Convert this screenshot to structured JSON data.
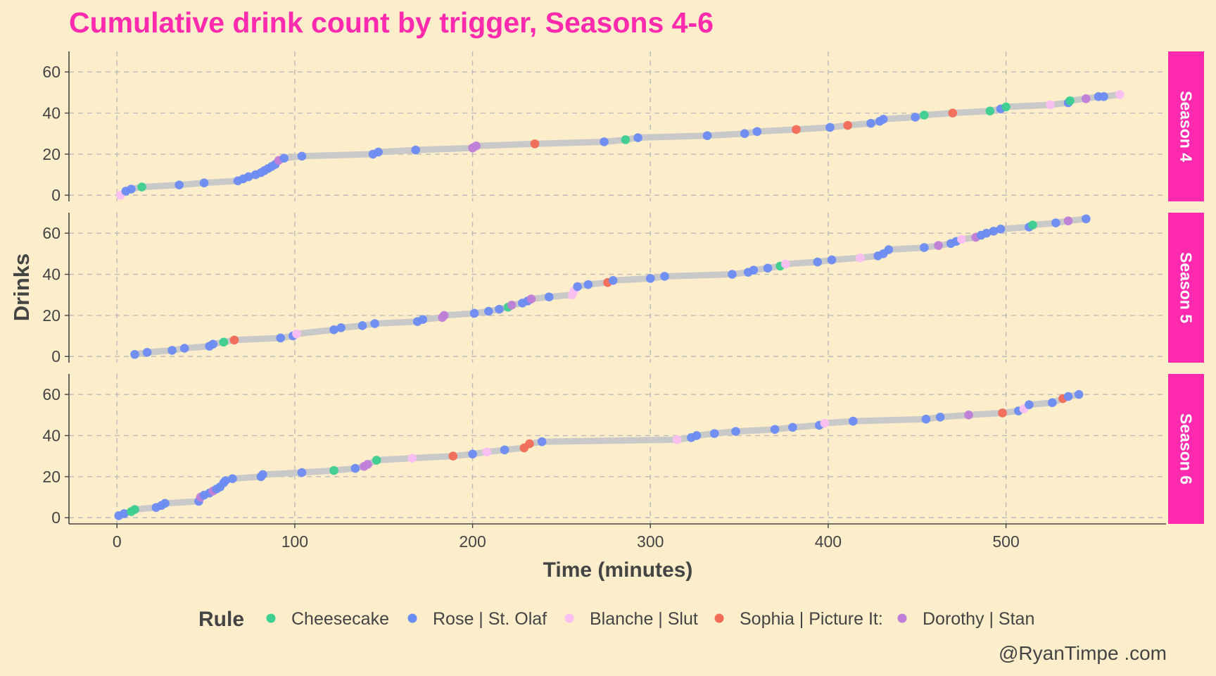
{
  "caption": "@RyanTimpe .com",
  "chart_data": {
    "type": "scatter",
    "title": "Cumulative drink count by trigger, Seasons 4-6",
    "xlabel": "Time (minutes)",
    "ylabel": "Drinks",
    "xlim": [
      -27,
      590
    ],
    "ylim": [
      -3,
      70
    ],
    "x_ticks": [
      0,
      100,
      200,
      300,
      400,
      500
    ],
    "y_ticks": [
      0,
      20,
      40,
      60
    ],
    "grid": true,
    "legend_title": "Rule",
    "legend_position": "bottom",
    "colors": {
      "background": "#FCEDCB",
      "title": "#FF2AAD",
      "strip": "#FF2AAD",
      "line": "#C9C9C9",
      "grid": "#BBBBBB",
      "axis": "#444444"
    },
    "rules": [
      {
        "name": "Cheesecake",
        "color": "#3CCF8F"
      },
      {
        "name": "Rose | St. Olaf",
        "color": "#6B8CF2"
      },
      {
        "name": "Blanche | Slut",
        "color": "#FBC0F2"
      },
      {
        "name": "Sophia | Picture It:",
        "color": "#F26B57"
      },
      {
        "name": "Dorothy | Stan",
        "color": "#C07ED8"
      }
    ],
    "panels": [
      {
        "label": "Season 4",
        "points": [
          [
            2,
            0,
            2
          ],
          [
            5,
            2,
            1
          ],
          [
            8,
            3,
            1
          ],
          [
            14,
            4,
            0
          ],
          [
            35,
            5,
            1
          ],
          [
            49,
            6,
            1
          ],
          [
            68,
            7,
            1
          ],
          [
            71,
            8,
            1
          ],
          [
            74,
            9,
            1
          ],
          [
            78,
            10,
            1
          ],
          [
            81,
            11,
            1
          ],
          [
            83,
            12,
            1
          ],
          [
            85,
            13,
            1
          ],
          [
            87,
            14,
            1
          ],
          [
            89,
            15,
            1
          ],
          [
            91,
            17,
            4
          ],
          [
            94,
            18,
            1
          ],
          [
            104,
            19,
            1
          ],
          [
            144,
            20,
            1
          ],
          [
            147,
            21,
            1
          ],
          [
            168,
            22,
            1
          ],
          [
            200,
            23,
            4
          ],
          [
            202,
            24,
            4
          ],
          [
            235,
            25,
            3
          ],
          [
            274,
            26,
            1
          ],
          [
            286,
            27,
            0
          ],
          [
            293,
            28,
            1
          ],
          [
            332,
            29,
            1
          ],
          [
            353,
            30,
            1
          ],
          [
            360,
            31,
            1
          ],
          [
            382,
            32,
            3
          ],
          [
            401,
            33,
            1
          ],
          [
            411,
            34,
            3
          ],
          [
            424,
            35,
            1
          ],
          [
            429,
            36,
            1
          ],
          [
            431,
            37,
            1
          ],
          [
            449,
            38,
            1
          ],
          [
            454,
            39,
            0
          ],
          [
            470,
            40,
            3
          ],
          [
            491,
            41,
            0
          ],
          [
            497,
            42,
            1
          ],
          [
            500,
            43,
            0
          ],
          [
            525,
            44,
            2
          ],
          [
            535,
            45,
            1
          ],
          [
            536,
            46,
            0
          ],
          [
            545,
            47,
            4
          ],
          [
            552,
            48,
            1
          ],
          [
            555,
            48,
            1
          ],
          [
            564,
            49,
            2
          ]
        ]
      },
      {
        "label": "Season 5",
        "points": [
          [
            10,
            1,
            1
          ],
          [
            17,
            2,
            1
          ],
          [
            31,
            3,
            1
          ],
          [
            38,
            4,
            1
          ],
          [
            52,
            5,
            1
          ],
          [
            54,
            6,
            1
          ],
          [
            60,
            7,
            0
          ],
          [
            66,
            8,
            3
          ],
          [
            92,
            9,
            1
          ],
          [
            99,
            10,
            1
          ],
          [
            101,
            11,
            2
          ],
          [
            122,
            13,
            1
          ],
          [
            126,
            14,
            1
          ],
          [
            138,
            15,
            1
          ],
          [
            145,
            16,
            1
          ],
          [
            169,
            17,
            1
          ],
          [
            172,
            18,
            1
          ],
          [
            183,
            19,
            4
          ],
          [
            184,
            20,
            4
          ],
          [
            201,
            21,
            1
          ],
          [
            209,
            22,
            1
          ],
          [
            215,
            23,
            1
          ],
          [
            220,
            24,
            0
          ],
          [
            222,
            25,
            4
          ],
          [
            228,
            26,
            1
          ],
          [
            231,
            27,
            1
          ],
          [
            233,
            28,
            4
          ],
          [
            243,
            29,
            1
          ],
          [
            256,
            30,
            2
          ],
          [
            257,
            32,
            2
          ],
          [
            259,
            34,
            1
          ],
          [
            265,
            35,
            1
          ],
          [
            276,
            36,
            3
          ],
          [
            279,
            37,
            1
          ],
          [
            300,
            38,
            1
          ],
          [
            308,
            39,
            1
          ],
          [
            346,
            40,
            1
          ],
          [
            355,
            41,
            1
          ],
          [
            358,
            42,
            1
          ],
          [
            366,
            43,
            1
          ],
          [
            373,
            44,
            0
          ],
          [
            376,
            45,
            2
          ],
          [
            394,
            46,
            1
          ],
          [
            402,
            47,
            1
          ],
          [
            418,
            48,
            2
          ],
          [
            428,
            49,
            1
          ],
          [
            431,
            50,
            1
          ],
          [
            434,
            52,
            1
          ],
          [
            454,
            53,
            1
          ],
          [
            462,
            54,
            4
          ],
          [
            469,
            55,
            1
          ],
          [
            472,
            56,
            1
          ],
          [
            475,
            57,
            2
          ],
          [
            483,
            58,
            4
          ],
          [
            486,
            59,
            1
          ],
          [
            489,
            60,
            1
          ],
          [
            493,
            61,
            1
          ],
          [
            497,
            62,
            1
          ],
          [
            513,
            63,
            1
          ],
          [
            515,
            64,
            0
          ],
          [
            528,
            65,
            1
          ],
          [
            535,
            66,
            4
          ],
          [
            545,
            67,
            1
          ]
        ]
      },
      {
        "label": "Season 6",
        "points": [
          [
            1,
            1,
            1
          ],
          [
            4,
            2,
            1
          ],
          [
            8,
            3,
            0
          ],
          [
            10,
            4,
            0
          ],
          [
            22,
            5,
            1
          ],
          [
            25,
            6,
            1
          ],
          [
            27,
            7,
            1
          ],
          [
            46,
            8,
            1
          ],
          [
            47,
            10,
            4
          ],
          [
            49,
            11,
            1
          ],
          [
            52,
            12,
            1
          ],
          [
            54,
            13,
            4
          ],
          [
            56,
            14,
            1
          ],
          [
            58,
            15,
            1
          ],
          [
            60,
            17,
            1
          ],
          [
            61,
            18,
            1
          ],
          [
            65,
            19,
            1
          ],
          [
            81,
            20,
            1
          ],
          [
            82,
            21,
            1
          ],
          [
            104,
            22,
            1
          ],
          [
            122,
            23,
            0
          ],
          [
            134,
            24,
            1
          ],
          [
            139,
            25,
            4
          ],
          [
            141,
            26,
            4
          ],
          [
            146,
            28,
            0
          ],
          [
            166,
            29,
            2
          ],
          [
            189,
            30,
            3
          ],
          [
            200,
            31,
            1
          ],
          [
            208,
            32,
            2
          ],
          [
            218,
            33,
            1
          ],
          [
            229,
            34,
            3
          ],
          [
            232,
            36,
            3
          ],
          [
            239,
            37,
            1
          ],
          [
            315,
            38,
            2
          ],
          [
            323,
            39,
            1
          ],
          [
            326,
            40,
            1
          ],
          [
            336,
            41,
            1
          ],
          [
            348,
            42,
            1
          ],
          [
            370,
            43,
            1
          ],
          [
            380,
            44,
            1
          ],
          [
            395,
            45,
            1
          ],
          [
            398,
            46,
            2
          ],
          [
            414,
            47,
            1
          ],
          [
            455,
            48,
            1
          ],
          [
            463,
            49,
            1
          ],
          [
            479,
            50,
            4
          ],
          [
            498,
            51,
            3
          ],
          [
            507,
            52,
            1
          ],
          [
            510,
            53,
            2
          ],
          [
            513,
            55,
            1
          ],
          [
            526,
            56,
            1
          ],
          [
            532,
            58,
            3
          ],
          [
            535,
            59,
            1
          ],
          [
            541,
            60,
            1
          ]
        ]
      }
    ]
  }
}
